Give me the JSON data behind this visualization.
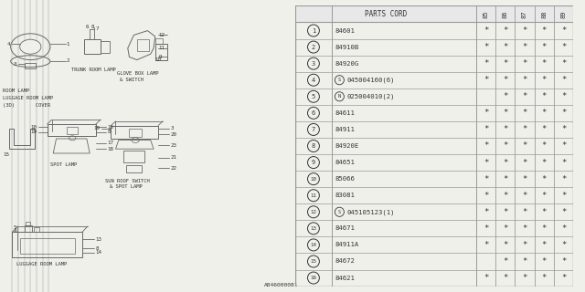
{
  "bg_color": "#f0f0eb",
  "diagram_bg": "#f0f0eb",
  "catalog_number": "A846000081",
  "table": {
    "header_label": "PARTS CORD",
    "years": [
      "85",
      "86",
      "87",
      "88",
      "89"
    ],
    "rows": [
      {
        "ref": "1",
        "special": "",
        "part": "84601",
        "marks": [
          true,
          true,
          true,
          true,
          true
        ]
      },
      {
        "ref": "2",
        "special": "",
        "part": "84910B",
        "marks": [
          true,
          true,
          true,
          true,
          true
        ]
      },
      {
        "ref": "3",
        "special": "",
        "part": "84920G",
        "marks": [
          true,
          true,
          true,
          true,
          true
        ]
      },
      {
        "ref": "4",
        "special": "S",
        "part": "045004160(6)",
        "marks": [
          true,
          true,
          true,
          true,
          true
        ]
      },
      {
        "ref": "5",
        "special": "N",
        "part": "025004010(2)",
        "marks": [
          false,
          true,
          true,
          true,
          true
        ]
      },
      {
        "ref": "6",
        "special": "",
        "part": "84611",
        "marks": [
          true,
          true,
          true,
          true,
          true
        ]
      },
      {
        "ref": "7",
        "special": "",
        "part": "84911",
        "marks": [
          true,
          true,
          true,
          true,
          true
        ]
      },
      {
        "ref": "8",
        "special": "",
        "part": "84920E",
        "marks": [
          true,
          true,
          true,
          true,
          true
        ]
      },
      {
        "ref": "9",
        "special": "",
        "part": "84651",
        "marks": [
          true,
          true,
          true,
          true,
          true
        ]
      },
      {
        "ref": "10",
        "special": "",
        "part": "85066",
        "marks": [
          true,
          true,
          true,
          true,
          true
        ]
      },
      {
        "ref": "11",
        "special": "",
        "part": "83081",
        "marks": [
          true,
          true,
          true,
          true,
          true
        ]
      },
      {
        "ref": "12",
        "special": "S",
        "part": "045105123(1)",
        "marks": [
          true,
          true,
          true,
          true,
          true
        ]
      },
      {
        "ref": "13",
        "special": "",
        "part": "84671",
        "marks": [
          true,
          true,
          true,
          true,
          true
        ]
      },
      {
        "ref": "14",
        "special": "",
        "part": "84911A",
        "marks": [
          true,
          true,
          true,
          true,
          true
        ]
      },
      {
        "ref": "15",
        "special": "",
        "part": "84672",
        "marks": [
          false,
          true,
          true,
          true,
          true
        ]
      },
      {
        "ref": "16",
        "special": "",
        "part": "84621",
        "marks": [
          true,
          true,
          true,
          true,
          true
        ]
      }
    ]
  },
  "lc": "#666666",
  "tc": "#333333",
  "tlc": "#999999"
}
